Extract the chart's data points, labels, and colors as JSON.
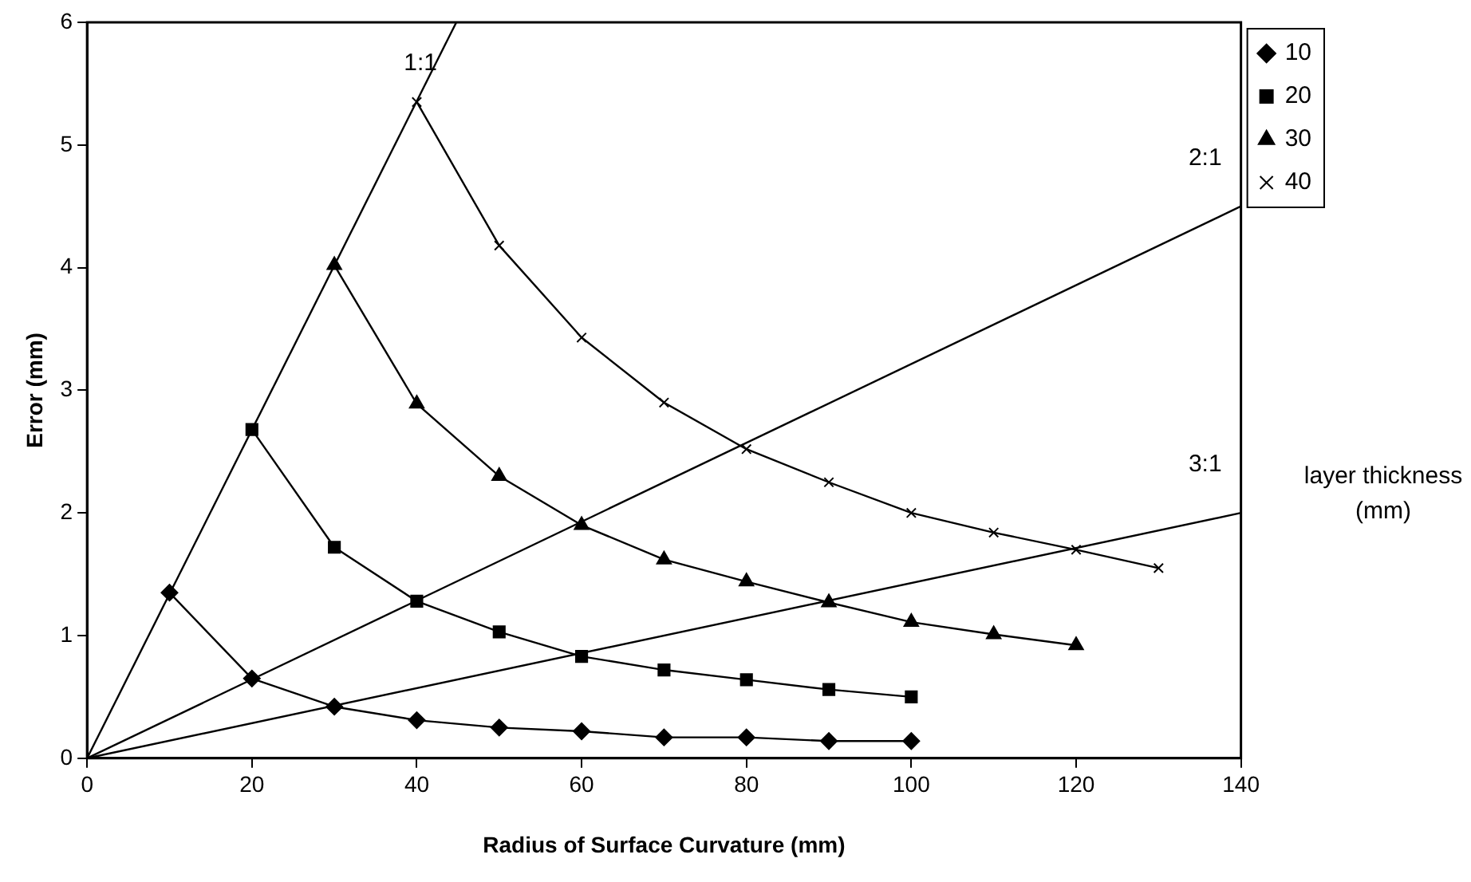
{
  "chart_data": {
    "type": "line",
    "xlabel": "Radius of Surface Curvature (mm)",
    "ylabel": "Error (mm)",
    "legend_title": "layer thickness (mm)",
    "xlim": [
      0,
      140
    ],
    "xticks": [
      0,
      20,
      40,
      60,
      80,
      100,
      120,
      140
    ],
    "ylim": [
      0,
      6
    ],
    "yticks": [
      0,
      1,
      2,
      3,
      4,
      5,
      6
    ],
    "legend": "right",
    "series": [
      {
        "name": "10",
        "color": "#000000",
        "marker": "diamond",
        "x": [
          10,
          20,
          30,
          40,
          50,
          60,
          70,
          80,
          90,
          100
        ],
        "values": [
          1.35,
          0.65,
          0.42,
          0.31,
          0.25,
          0.22,
          0.17,
          0.17,
          0.14,
          0.14
        ]
      },
      {
        "name": "20",
        "color": "#000000",
        "marker": "square",
        "x": [
          20,
          30,
          40,
          50,
          60,
          70,
          80,
          90,
          100
        ],
        "values": [
          2.68,
          1.72,
          1.28,
          1.03,
          0.83,
          0.72,
          0.64,
          0.56,
          0.5
        ]
      },
      {
        "name": "30",
        "color": "#000000",
        "marker": "triangle",
        "x": [
          30,
          40,
          50,
          60,
          70,
          80,
          90,
          100,
          110,
          120
        ],
        "values": [
          4.02,
          2.89,
          2.3,
          1.9,
          1.62,
          1.44,
          1.27,
          1.11,
          1.01,
          0.92
        ]
      },
      {
        "name": "40",
        "color": "#000000",
        "marker": "cross",
        "x": [
          40,
          50,
          60,
          70,
          80,
          90,
          100,
          110,
          120,
          130
        ],
        "values": [
          5.35,
          4.18,
          3.43,
          2.9,
          2.52,
          2.25,
          2.0,
          1.84,
          1.7,
          1.55
        ]
      },
      {
        "name": "1:1",
        "color": "#000000",
        "marker": "none",
        "x": [
          0,
          44.8
        ],
        "values": [
          0,
          6
        ]
      },
      {
        "name": "2:1",
        "color": "#000000",
        "marker": "none",
        "x": [
          0,
          140
        ],
        "values": [
          0,
          4.5
        ]
      },
      {
        "name": "3:1",
        "color": "#000000",
        "marker": "none",
        "x": [
          0,
          140
        ],
        "values": [
          0,
          2.0
        ]
      }
    ]
  }
}
